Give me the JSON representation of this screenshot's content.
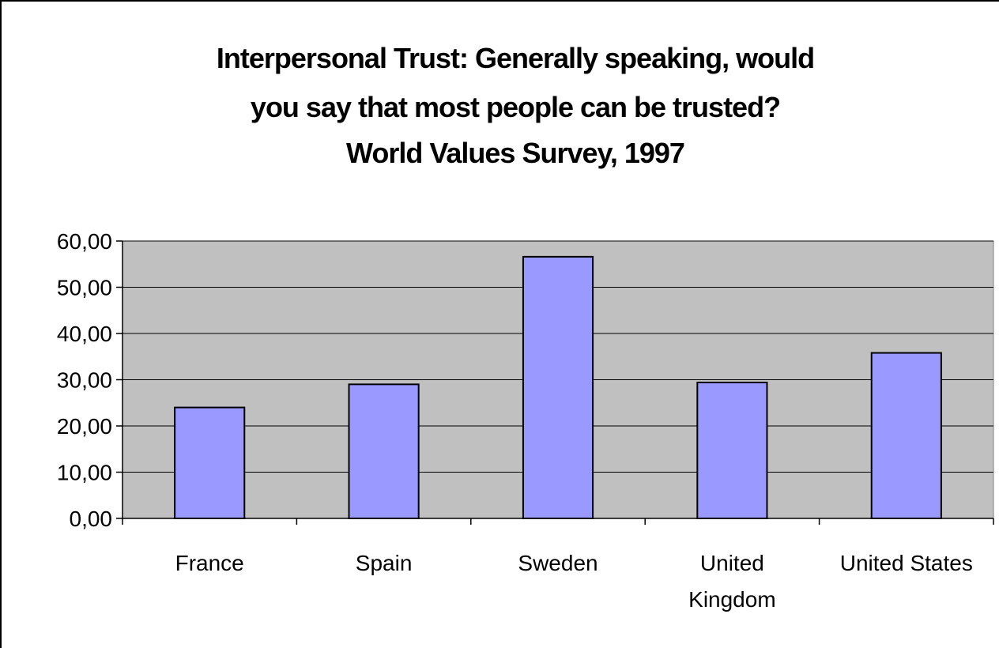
{
  "chart_data": {
    "type": "bar",
    "title_lines": [
      "Interpersonal Trust:  Generally speaking, would",
      "you say that most people can be trusted?",
      "World Values Survey, 1997"
    ],
    "categories": [
      [
        "France"
      ],
      [
        "Spain"
      ],
      [
        "Sweden"
      ],
      [
        "United",
        "Kingdom"
      ],
      [
        "United States"
      ]
    ],
    "values": [
      24.0,
      29.0,
      56.6,
      29.4,
      35.8
    ],
    "ylim": [
      0,
      60
    ],
    "yticks": [
      0,
      10,
      20,
      30,
      40,
      50,
      60
    ],
    "ytick_labels": [
      "0,00",
      "10,00",
      "20,00",
      "30,00",
      "40,00",
      "50,00",
      "60,00"
    ],
    "grid": true,
    "legend": "none",
    "colors": {
      "plot_background": "#c0c0c0",
      "bar_fill": "#9999ff",
      "bar_stroke": "#000000",
      "grid": "#000000"
    }
  }
}
